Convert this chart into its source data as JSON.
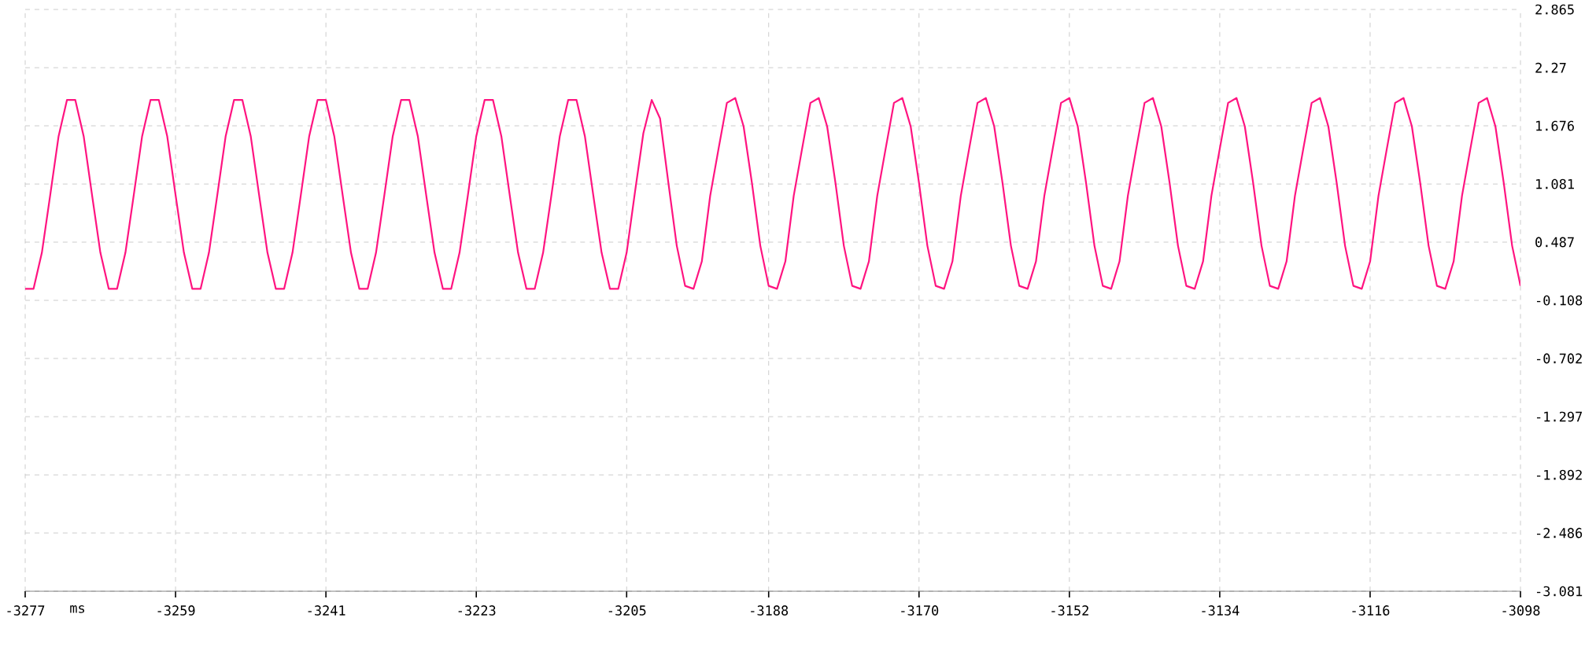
{
  "chart_data": {
    "type": "line",
    "xlabel": "ms",
    "x": [
      -3277,
      -3276,
      -3275,
      -3274,
      -3273,
      -3272,
      -3271,
      -3270,
      -3269,
      -3268,
      -3267,
      -3266,
      -3265,
      -3264,
      -3263,
      -3262,
      -3261,
      -3260,
      -3259,
      -3258,
      -3257,
      -3256,
      -3255,
      -3254,
      -3253,
      -3252,
      -3251,
      -3250,
      -3249,
      -3248,
      -3247,
      -3246,
      -3245,
      -3244,
      -3243,
      -3242,
      -3241,
      -3240,
      -3239,
      -3238,
      -3237,
      -3236,
      -3235,
      -3234,
      -3233,
      -3232,
      -3231,
      -3230,
      -3229,
      -3228,
      -3227,
      -3226,
      -3225,
      -3224,
      -3223,
      -3222,
      -3221,
      -3220,
      -3219,
      -3218,
      -3217,
      -3216,
      -3215,
      -3214,
      -3213,
      -3212,
      -3211,
      -3210,
      -3209,
      -3208,
      -3207,
      -3206,
      -3205,
      -3204,
      -3203,
      -3202,
      -3201,
      -3200,
      -3199,
      -3198,
      -3197,
      -3196,
      -3195,
      -3194,
      -3193,
      -3192,
      -3191,
      -3190,
      -3189,
      -3188,
      -3187,
      -3186,
      -3185,
      -3184,
      -3183,
      -3182,
      -3181,
      -3180,
      -3179,
      -3178,
      -3177,
      -3176,
      -3175,
      -3174,
      -3173,
      -3172,
      -3171,
      -3170,
      -3169,
      -3168,
      -3167,
      -3166,
      -3165,
      -3164,
      -3163,
      -3162,
      -3161,
      -3160,
      -3159,
      -3158,
      -3157,
      -3156,
      -3155,
      -3154,
      -3153,
      -3152,
      -3151,
      -3150,
      -3149,
      -3148,
      -3147,
      -3146,
      -3145,
      -3144,
      -3143,
      -3142,
      -3141,
      -3140,
      -3139,
      -3138,
      -3137,
      -3136,
      -3135,
      -3134,
      -3133,
      -3132,
      -3131,
      -3130,
      -3129,
      -3128,
      -3127,
      -3126,
      -3125,
      -3124,
      -3123,
      -3122,
      -3121,
      -3120,
      -3119,
      -3118,
      -3117,
      -3116,
      -3115,
      -3114,
      -3113,
      -3112,
      -3111,
      -3110,
      -3109,
      -3108,
      -3107,
      -3106,
      -3105,
      -3104,
      -3103,
      -3102,
      -3101,
      -3100,
      -3099,
      -3098
    ],
    "series": [
      {
        "color": "#ff1480",
        "values": [
          0.01,
          0.01,
          0.38,
          0.97,
          1.57,
          1.94,
          1.94,
          1.57,
          0.97,
          0.38,
          0.01,
          0.01,
          0.38,
          0.97,
          1.57,
          1.94,
          1.94,
          1.57,
          0.97,
          0.38,
          0.01,
          0.01,
          0.38,
          0.97,
          1.57,
          1.94,
          1.94,
          1.57,
          0.97,
          0.38,
          0.01,
          0.01,
          0.38,
          0.97,
          1.57,
          1.94,
          1.94,
          1.57,
          0.97,
          0.38,
          0.01,
          0.01,
          0.38,
          0.97,
          1.57,
          1.94,
          1.94,
          1.57,
          0.97,
          0.38,
          0.01,
          0.01,
          0.38,
          0.97,
          1.57,
          1.94,
          1.94,
          1.57,
          0.97,
          0.38,
          0.01,
          0.01,
          0.38,
          0.97,
          1.57,
          1.94,
          1.94,
          1.57,
          0.97,
          0.38,
          0.01,
          0.01,
          0.38,
          1.0,
          1.6,
          1.94,
          1.75,
          1.09,
          0.45,
          0.04,
          0.01,
          0.29,
          0.96,
          1.44,
          1.91,
          1.96,
          1.67,
          1.09,
          0.45,
          0.04,
          0.01,
          0.29,
          0.96,
          1.44,
          1.91,
          1.96,
          1.67,
          1.09,
          0.45,
          0.04,
          0.01,
          0.29,
          0.96,
          1.44,
          1.91,
          1.96,
          1.67,
          1.09,
          0.45,
          0.04,
          0.01,
          0.29,
          0.96,
          1.44,
          1.91,
          1.96,
          1.67,
          1.09,
          0.45,
          0.04,
          0.01,
          0.29,
          0.96,
          1.44,
          1.91,
          1.96,
          1.67,
          1.09,
          0.45,
          0.04,
          0.01,
          0.29,
          0.96,
          1.44,
          1.91,
          1.96,
          1.67,
          1.09,
          0.45,
          0.04,
          0.01,
          0.29,
          0.96,
          1.44,
          1.91,
          1.96,
          1.67,
          1.09,
          0.45,
          0.04,
          0.01,
          0.29,
          0.96,
          1.44,
          1.91,
          1.96,
          1.67,
          1.09,
          0.45,
          0.04,
          0.01,
          0.29,
          0.96,
          1.44,
          1.91,
          1.96,
          1.67,
          1.09,
          0.45,
          0.04,
          0.01,
          0.29,
          0.96,
          1.44,
          1.91,
          1.96,
          1.67,
          1.09,
          0.45,
          0.04
        ]
      }
    ],
    "xlim": [
      -3277,
      -3098
    ],
    "ylim": [
      -3.081,
      2.865
    ],
    "xticks": [
      -3277,
      -3259,
      -3241,
      -3223,
      -3205,
      -3188,
      -3170,
      -3152,
      -3134,
      -3116,
      -3098
    ],
    "yticks": [
      -3.081,
      -2.486,
      -1.892,
      -1.297,
      -0.702,
      -0.108,
      0.487,
      1.081,
      1.676,
      2.27,
      2.865
    ],
    "grid": true
  }
}
